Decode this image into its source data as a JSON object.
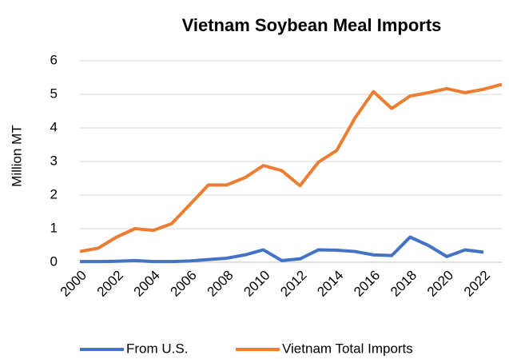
{
  "chart_data": {
    "type": "line",
    "title": "Vietnam Soybean Meal Imports",
    "y_label": "Million MT",
    "categories": [
      "2000",
      null,
      "2002",
      null,
      "2004",
      null,
      "2006",
      null,
      "2008",
      null,
      "2010",
      null,
      "2012",
      null,
      "2014",
      null,
      "2016",
      null,
      "2018",
      null,
      "2020",
      null,
      "2022",
      null
    ],
    "series": [
      {
        "name": "From U.S.",
        "color": "#4472c4",
        "values": [
          0.02,
          0.02,
          0.03,
          0.05,
          0.02,
          0.02,
          0.04,
          0.08,
          0.12,
          0.22,
          0.37,
          0.05,
          0.1,
          0.37,
          0.36,
          0.32,
          0.22,
          0.2,
          0.75,
          0.5,
          0.17,
          0.37,
          0.3,
          null
        ]
      },
      {
        "name": "Vietnam Total Imports",
        "color": "#ed7d31",
        "values": [
          0.32,
          0.42,
          0.75,
          1.0,
          0.95,
          1.15,
          1.72,
          2.3,
          2.3,
          2.52,
          2.88,
          2.73,
          2.28,
          2.98,
          3.33,
          4.3,
          5.08,
          4.58,
          4.95,
          5.05,
          5.17,
          5.05,
          5.15,
          5.3
        ]
      }
    ],
    "ylim": [
      0,
      6
    ],
    "yticks": [
      0,
      1,
      2,
      3,
      4,
      5,
      6
    ],
    "grid": true,
    "legend": "bottom"
  }
}
